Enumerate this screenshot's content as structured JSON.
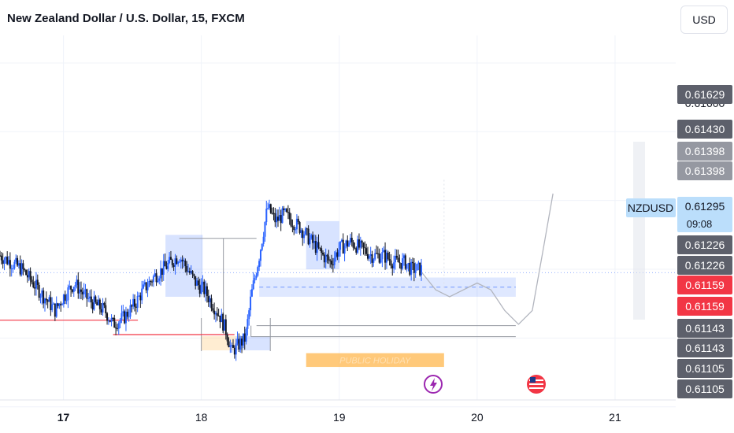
{
  "header": {
    "title": "New Zealand Dollar / U.S. Dollar, 15, FXCM",
    "currency_button": "USD"
  },
  "colors": {
    "up": "#2962ff",
    "down": "#131722",
    "ticker_bg": "#bbdefb",
    "price_dark": "#5d606b",
    "price_gray": "#9598a1",
    "price_red": "#f23645",
    "zone_blue": "#2962ff",
    "holiday": "#ffb74d",
    "event_purple": "#9c27b0",
    "flag_red": "#f23645",
    "support_red": "#f23645"
  },
  "chart_data": {
    "type": "candlestick",
    "symbol": "NZDUSD",
    "timeframe": "15",
    "x_ticks": [
      {
        "label": "17",
        "day": 17,
        "bold": true
      },
      {
        "label": "18",
        "day": 18,
        "bold": false
      },
      {
        "label": "19",
        "day": 19,
        "bold": false
      },
      {
        "label": "20",
        "day": 20,
        "bold": false
      },
      {
        "label": "21",
        "day": 21,
        "bold": false
      }
    ],
    "x_range": [
      16.54,
      21.44
    ],
    "y_range": [
      0.6111,
      0.6164
    ],
    "candle_close_path": [
      [
        16.54,
        0.6132
      ],
      [
        16.62,
        0.6131
      ],
      [
        16.7,
        0.613
      ],
      [
        16.78,
        0.6128
      ],
      [
        16.86,
        0.6126
      ],
      [
        16.94,
        0.6124
      ],
      [
        17.0,
        0.6126
      ],
      [
        17.08,
        0.6128
      ],
      [
        17.16,
        0.6126
      ],
      [
        17.22,
        0.6125
      ],
      [
        17.3,
        0.6124
      ],
      [
        17.36,
        0.6122
      ],
      [
        17.44,
        0.6123
      ],
      [
        17.52,
        0.6125
      ],
      [
        17.58,
        0.6127
      ],
      [
        17.66,
        0.6129
      ],
      [
        17.72,
        0.613
      ],
      [
        17.78,
        0.6131
      ],
      [
        17.84,
        0.6132
      ],
      [
        17.9,
        0.613
      ],
      [
        17.96,
        0.6128
      ],
      [
        18.02,
        0.6127
      ],
      [
        18.08,
        0.6125
      ],
      [
        18.14,
        0.6123
      ],
      [
        18.18,
        0.6121
      ],
      [
        18.22,
        0.6118
      ],
      [
        18.27,
        0.6119
      ],
      [
        18.32,
        0.612
      ],
      [
        18.36,
        0.6126
      ],
      [
        18.42,
        0.6132
      ],
      [
        18.48,
        0.6139
      ],
      [
        18.54,
        0.6137
      ],
      [
        18.6,
        0.6138
      ],
      [
        18.66,
        0.6137
      ],
      [
        18.72,
        0.6136
      ],
      [
        18.8,
        0.6134
      ],
      [
        18.88,
        0.6132
      ],
      [
        18.94,
        0.6131
      ],
      [
        19.0,
        0.6133
      ],
      [
        19.08,
        0.6134
      ],
      [
        19.16,
        0.6133
      ],
      [
        19.24,
        0.6132
      ],
      [
        19.32,
        0.6132
      ],
      [
        19.4,
        0.6131
      ],
      [
        19.48,
        0.6131
      ],
      [
        19.52,
        0.613
      ],
      [
        19.6,
        0.613
      ]
    ],
    "projection_path": [
      [
        19.6,
        0.61295
      ],
      [
        19.7,
        0.6127
      ],
      [
        19.8,
        0.6126
      ],
      [
        19.9,
        0.6127
      ],
      [
        20.0,
        0.6128
      ],
      [
        20.1,
        0.6127
      ],
      [
        20.2,
        0.6124
      ],
      [
        20.3,
        0.6122
      ],
      [
        20.4,
        0.6124
      ],
      [
        20.48,
        0.6133
      ],
      [
        20.55,
        0.6141
      ]
    ],
    "zones": [
      {
        "kind": "supply",
        "x": [
          17.74,
          18.01
        ],
        "y": [
          0.6126,
          0.6135
        ]
      },
      {
        "kind": "supply",
        "x": [
          18.76,
          19.0
        ],
        "y": [
          0.613,
          0.6137
        ]
      },
      {
        "kind": "target",
        "x": [
          18.42,
          20.28
        ],
        "y": [
          0.6126,
          0.61288
        ]
      }
    ],
    "levels": [
      {
        "kind": "red",
        "price": 0.61226,
        "x": [
          16.54,
          17.54
        ]
      },
      {
        "kind": "red",
        "price": 0.61205,
        "x": [
          17.36,
          18.24
        ]
      },
      {
        "kind": "gray",
        "price": 0.61345,
        "x": [
          17.84,
          18.4
        ]
      },
      {
        "kind": "gray",
        "price": 0.61218,
        "x": [
          18.4,
          20.28
        ]
      },
      {
        "kind": "gray",
        "price": 0.61202,
        "x": [
          18.36,
          20.28
        ]
      }
    ],
    "annotations": [
      {
        "kind": "holiday",
        "text": "PUBLIC HOLIDAY",
        "x": [
          18.76,
          19.76
        ],
        "y": [
          0.61158,
          0.61178
        ]
      }
    ],
    "y_price_labels": [
      {
        "value": "0.61629",
        "style": "dark"
      },
      {
        "value": "0.61430",
        "style": "dark"
      },
      {
        "value": "0.61398",
        "style": "gray"
      },
      {
        "value": "0.61398",
        "style": "gray"
      },
      {
        "value": "0.61295",
        "style": "ticker"
      },
      {
        "value": "0.61226",
        "style": "dark"
      },
      {
        "value": "0.61226",
        "style": "dark"
      },
      {
        "value": "0.61159",
        "style": "red"
      },
      {
        "value": "0.61159",
        "style": "red"
      },
      {
        "value": "0.61143",
        "style": "dark"
      },
      {
        "value": "0.61143",
        "style": "dark"
      },
      {
        "value": "0.61105",
        "style": "dark"
      },
      {
        "value": "0.61105",
        "style": "dark"
      }
    ],
    "partial_top_label": "0.61600",
    "current_price": 0.61295,
    "ticker_label": "NZDUSD",
    "countdown": "09:08"
  }
}
